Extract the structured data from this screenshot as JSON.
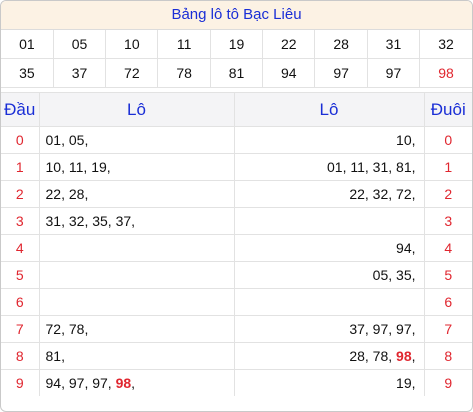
{
  "title": "Bảng lô tô Bạc Liêu",
  "numbers": [
    "01",
    "05",
    "10",
    "11",
    "19",
    "22",
    "28",
    "31",
    "32",
    "35",
    "37",
    "72",
    "78",
    "81",
    "94",
    "97",
    "97",
    "98"
  ],
  "highlight": "98",
  "headers": {
    "dau": "Đầu",
    "lo_left": "Lô",
    "lo_right": "Lô",
    "duoi": "Đuôi"
  },
  "rows": [
    {
      "digit": "0",
      "left": [
        "01",
        "05"
      ],
      "right": [
        "10"
      ]
    },
    {
      "digit": "1",
      "left": [
        "10",
        "11",
        "19"
      ],
      "right": [
        "01",
        "11",
        "31",
        "81"
      ]
    },
    {
      "digit": "2",
      "left": [
        "22",
        "28"
      ],
      "right": [
        "22",
        "32",
        "72"
      ]
    },
    {
      "digit": "3",
      "left": [
        "31",
        "32",
        "35",
        "37"
      ],
      "right": []
    },
    {
      "digit": "4",
      "left": [],
      "right": [
        "94"
      ]
    },
    {
      "digit": "5",
      "left": [],
      "right": [
        "05",
        "35"
      ]
    },
    {
      "digit": "6",
      "left": [],
      "right": []
    },
    {
      "digit": "7",
      "left": [
        "72",
        "78"
      ],
      "right": [
        "37",
        "97",
        "97"
      ]
    },
    {
      "digit": "8",
      "left": [
        "81"
      ],
      "right": [
        "28",
        "78",
        "98"
      ]
    },
    {
      "digit": "9",
      "left": [
        "94",
        "97",
        "97",
        "98"
      ],
      "right": [
        "19"
      ]
    }
  ],
  "colors": {
    "title_bg": "#fcf2e4",
    "blue": "#1a2ed6",
    "red": "#e0262f",
    "header_bg": "#f4f4f6"
  }
}
